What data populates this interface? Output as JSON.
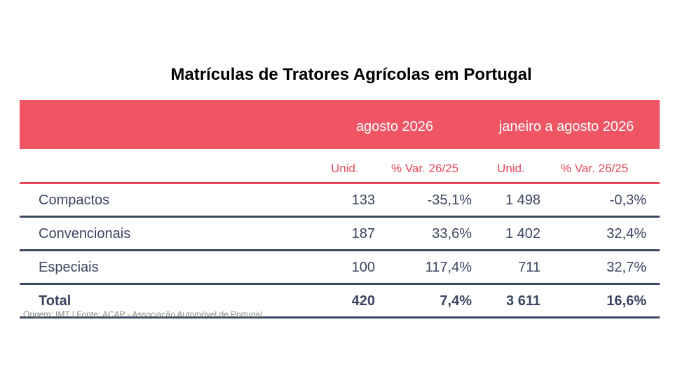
{
  "title": "Matrículas de Tratores Agrícolas em Portugal",
  "table": {
    "group_headers": [
      "agosto 2026",
      "janeiro a agosto 2026"
    ],
    "column_headers": [
      "Unid.",
      "% Var. 26/25",
      "Unid.",
      "% Var. 26/25"
    ],
    "rows": [
      {
        "label": "Compactos",
        "values": [
          "133",
          "-35,1%",
          "1 498",
          "-0,3%"
        ]
      },
      {
        "label": "Convencionais",
        "values": [
          "187",
          "33,6%",
          "1 402",
          "32,4%"
        ]
      },
      {
        "label": "Especiais",
        "values": [
          "100",
          "117,4%",
          "711",
          "32,7%"
        ]
      }
    ],
    "total": {
      "label": "Total",
      "values": [
        "420",
        "7,4%",
        "3 611",
        "16,6%"
      ]
    }
  },
  "source": "Origem: IMT | Fonte: ACAP - Associação Automóvel de Portugal",
  "colors": {
    "header_band": "#ef5563",
    "subheader_text": "#e8465a",
    "body_text": "#3a4560",
    "row_rule": "#3d4a63"
  }
}
